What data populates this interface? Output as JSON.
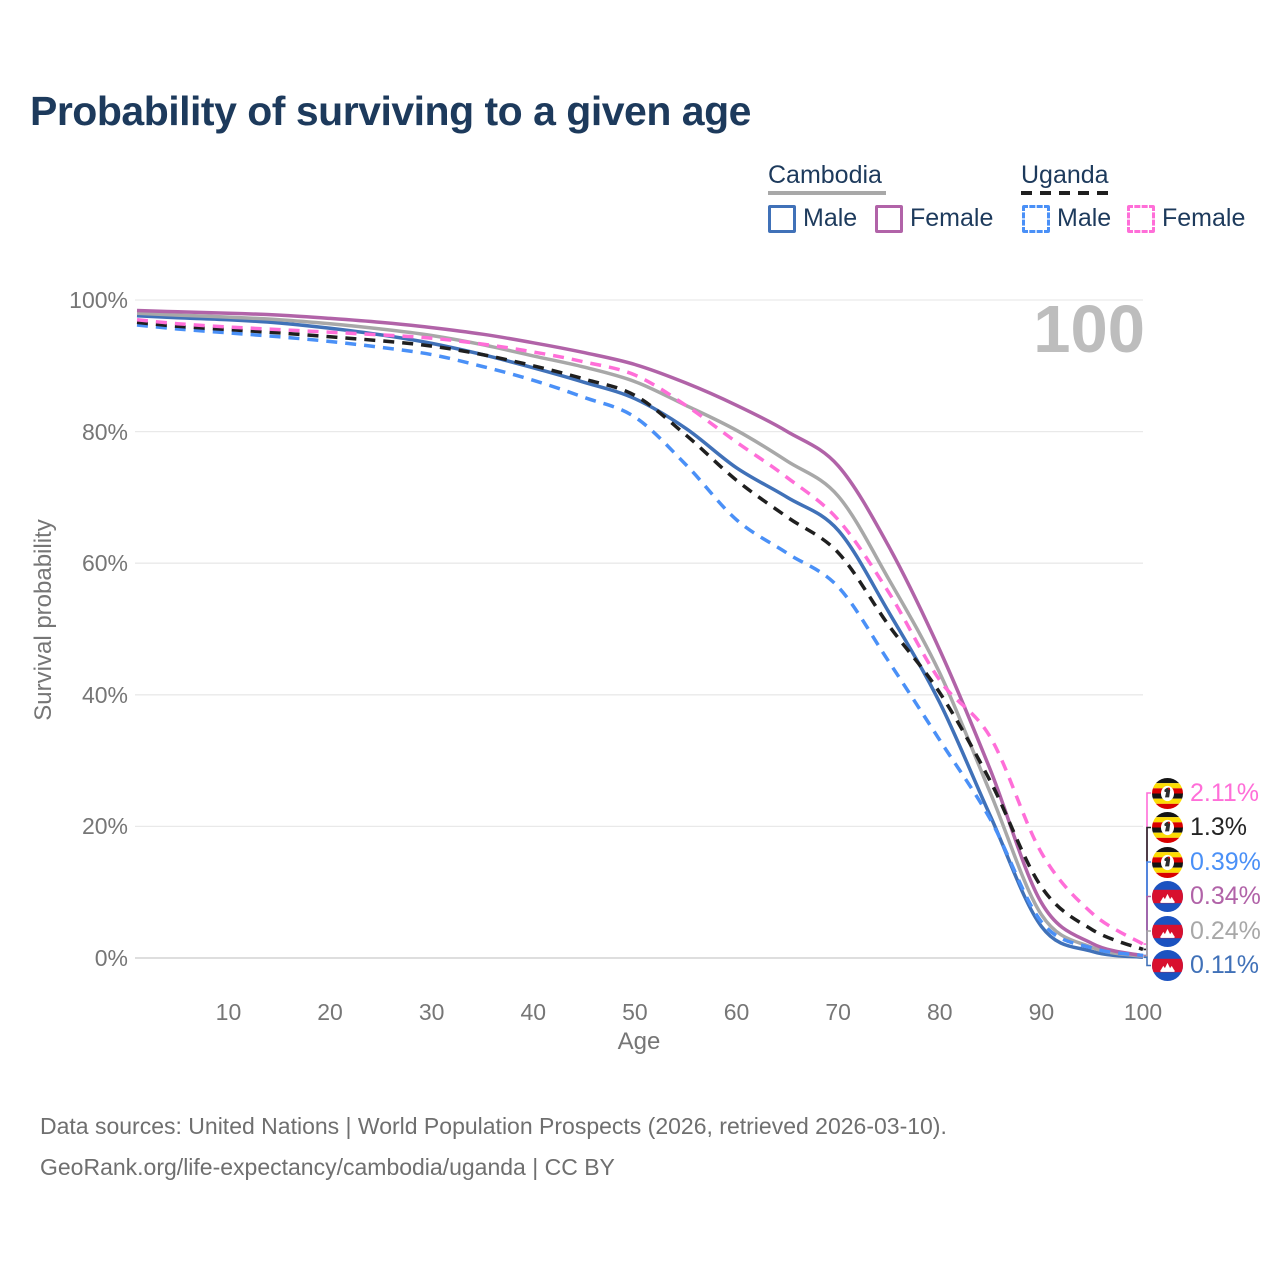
{
  "header": {
    "title": "Probability of surviving to a given age"
  },
  "watermark": "100",
  "legend": {
    "groups": [
      {
        "label": "Cambodia",
        "line_style": "solid",
        "line_color": "#a8a8a8",
        "items": [
          {
            "label": "Male",
            "box_color": "#4071b8",
            "box_style": "solid"
          },
          {
            "label": "Female",
            "box_color": "#b163a8",
            "box_style": "solid"
          }
        ]
      },
      {
        "label": "Uganda",
        "line_style": "dashed",
        "line_color": "#1f1f1f",
        "items": [
          {
            "label": "Male",
            "box_color": "#4a90f7",
            "box_style": "dashed"
          },
          {
            "label": "Female",
            "box_color": "#ff6ed8",
            "box_style": "dashed"
          }
        ]
      }
    ]
  },
  "chart_data": {
    "type": "line",
    "title": "Probability of surviving to a given age",
    "xlabel": "Age",
    "ylabel": "Survival probability",
    "xlim": [
      1,
      100
    ],
    "ylim": [
      0,
      100
    ],
    "grid": "horizontal-only",
    "legend_position": "top-right",
    "x_ticks": [
      {
        "value": 10,
        "label": "10"
      },
      {
        "value": 20,
        "label": "20"
      },
      {
        "value": 30,
        "label": "30"
      },
      {
        "value": 40,
        "label": "40"
      },
      {
        "value": 50,
        "label": "50"
      },
      {
        "value": 60,
        "label": "60"
      },
      {
        "value": 70,
        "label": "70"
      },
      {
        "value": 80,
        "label": "80"
      },
      {
        "value": 90,
        "label": "90"
      },
      {
        "value": 100,
        "label": "100"
      }
    ],
    "y_ticks": [
      {
        "value": 0,
        "label": "0%"
      },
      {
        "value": 20,
        "label": "20%"
      },
      {
        "value": 40,
        "label": "40%"
      },
      {
        "value": 60,
        "label": "60%"
      },
      {
        "value": 80,
        "label": "80%"
      },
      {
        "value": 100,
        "label": "100%"
      }
    ],
    "ages": [
      1,
      5,
      10,
      15,
      20,
      25,
      30,
      35,
      40,
      45,
      50,
      55,
      60,
      65,
      70,
      75,
      80,
      85,
      90,
      95,
      100
    ],
    "series": [
      {
        "name": "Cambodia Male",
        "country": "Cambodia",
        "sex": "Male",
        "style": "solid",
        "color": "#4071b8",
        "values": [
          97.6,
          97.3,
          97.0,
          96.5,
          95.7,
          94.7,
          93.4,
          91.7,
          89.7,
          87.5,
          85.0,
          80.5,
          74.5,
          70.0,
          65.0,
          52.5,
          38.8,
          21.5,
          4.8,
          1.0,
          0.11
        ]
      },
      {
        "name": "Cambodia Both sexes",
        "country": "Cambodia",
        "sex": "Both",
        "style": "solid",
        "color": "#a8a8a8",
        "values": [
          98.0,
          97.7,
          97.4,
          97.0,
          96.4,
          95.6,
          94.6,
          93.2,
          91.5,
          89.8,
          87.6,
          84.0,
          80.2,
          75.5,
          70.2,
          57.5,
          43.3,
          25.0,
          6.6,
          1.6,
          0.24
        ]
      },
      {
        "name": "Cambodia Female",
        "country": "Cambodia",
        "sex": "Female",
        "style": "solid",
        "color": "#b163a8",
        "values": [
          98.4,
          98.2,
          98.0,
          97.7,
          97.2,
          96.6,
          95.8,
          94.8,
          93.5,
          92.0,
          90.2,
          87.4,
          84.0,
          80.0,
          74.8,
          62.5,
          46.8,
          28.5,
          8.4,
          2.2,
          0.34
        ]
      },
      {
        "name": "Uganda Male",
        "country": "Uganda",
        "sex": "Male",
        "style": "dashed",
        "color": "#4a90f7",
        "values": [
          96.2,
          95.6,
          95.0,
          94.4,
          93.7,
          92.8,
          91.7,
          89.9,
          87.8,
          85.2,
          82.2,
          75.0,
          66.6,
          61.5,
          56.4,
          45.0,
          33.1,
          21.0,
          5.5,
          1.5,
          0.39
        ]
      },
      {
        "name": "Uganda Both sexes",
        "country": "Uganda",
        "sex": "Both",
        "style": "dashed",
        "color": "#1f1f1f",
        "values": [
          96.6,
          96.0,
          95.5,
          95.0,
          94.4,
          93.8,
          93.0,
          91.7,
          90.0,
          88.0,
          85.5,
          79.5,
          72.6,
          67.0,
          61.6,
          50.5,
          40.3,
          26.8,
          10.8,
          4.3,
          1.3
        ]
      },
      {
        "name": "Uganda Female",
        "country": "Uganda",
        "sex": "Female",
        "style": "dashed",
        "color": "#ff6ed8",
        "values": [
          97.0,
          96.4,
          95.9,
          95.5,
          95.1,
          94.7,
          94.2,
          93.3,
          92.1,
          90.6,
          88.6,
          84.0,
          78.4,
          73.0,
          66.6,
          55.5,
          42.2,
          33.5,
          16.0,
          6.8,
          2.11
        ]
      }
    ],
    "end_labels": [
      {
        "series": "Uganda Female",
        "flag": "uganda",
        "value": "2.11%",
        "pct": 2.11,
        "color": "#ff6ed8"
      },
      {
        "series": "Uganda Both sexes",
        "flag": "uganda",
        "value": "1.3%",
        "pct": 1.3,
        "color": "#242424"
      },
      {
        "series": "Uganda Male",
        "flag": "uganda",
        "value": "0.39%",
        "pct": 0.39,
        "color": "#4a90f7"
      },
      {
        "series": "Cambodia Female",
        "flag": "cambodia",
        "value": "0.34%",
        "pct": 0.34,
        "color": "#b163a8"
      },
      {
        "series": "Cambodia Both sexes",
        "flag": "cambodia",
        "value": "0.24%",
        "pct": 0.24,
        "color": "#a8a8a8"
      },
      {
        "series": "Cambodia Male",
        "flag": "cambodia",
        "value": "0.11%",
        "pct": 0.11,
        "color": "#4071b8"
      }
    ]
  },
  "footer": {
    "line1": "Data sources: United Nations | World Population Prospects (2026, retrieved 2026-03-10).",
    "line2": "GeoRank.org/life-expectancy/cambodia/uganda | CC BY"
  }
}
